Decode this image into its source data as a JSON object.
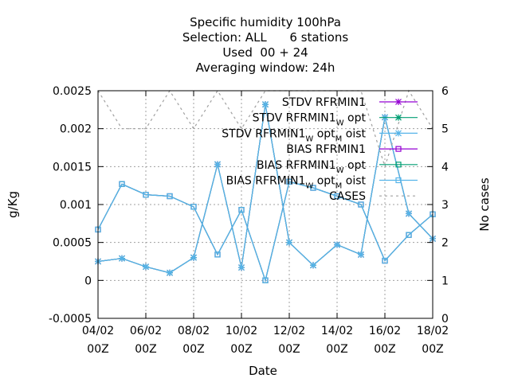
{
  "chart_data": {
    "type": "line",
    "title_lines": [
      "Specific humidity 100hPa",
      "Selection: ALL      6 stations",
      "Used  00 + 24",
      "Averaging window: 24h"
    ],
    "xlabel": "Date",
    "ylabel": "g/Kg",
    "y2label": "No cases",
    "x": [
      0,
      1,
      2,
      3,
      4,
      5,
      6,
      7,
      8,
      9,
      10,
      11,
      12,
      13,
      14
    ],
    "xticks": [
      {
        "pos": 0,
        "label": "04/02\n00Z"
      },
      {
        "pos": 2,
        "label": "06/02\n00Z"
      },
      {
        "pos": 4,
        "label": "08/02\n00Z"
      },
      {
        "pos": 6,
        "label": "10/02\n00Z"
      },
      {
        "pos": 8,
        "label": "12/02\n00Z"
      },
      {
        "pos": 10,
        "label": "14/02\n00Z"
      },
      {
        "pos": 12,
        "label": "16/02\n00Z"
      },
      {
        "pos": 14,
        "label": "18/02\n00Z"
      }
    ],
    "xlim": [
      0,
      14
    ],
    "ylim": [
      -0.0005,
      0.0025
    ],
    "yticks": [
      "-0.0005",
      "0",
      "0.0005",
      "0.001",
      "0.0015",
      "0.002",
      "0.0025"
    ],
    "y2lim": [
      0,
      6
    ],
    "y2ticks": [
      "0",
      "1",
      "2",
      "3",
      "4",
      "5",
      "6"
    ],
    "grid": true,
    "legend_position": "top-right",
    "legend_entries": [
      "STDV RFRMIN1",
      "STDV RFRMIN1_W opt",
      "STDV RFRMIN1_W opt_M oist",
      "BIAS RFRMIN1",
      "BIAS RFRMIN1_W opt",
      "BIAS RFRMIN1_W opt_M oist",
      "CASES"
    ],
    "series": [
      {
        "name": "STDV RFRMIN1",
        "color": "#9400d3",
        "marker": "star",
        "axis": "y",
        "values": [
          0.00025,
          0.00029,
          0.00018,
          0.0001,
          0.0003,
          0.00153,
          0.00017,
          0.00232,
          0.0005,
          0.0002,
          0.00047,
          0.00034,
          0.00215,
          0.00088,
          0.00055
        ]
      },
      {
        "name": "STDV RFRMIN1_W opt",
        "color": "#009e73",
        "marker": "star",
        "axis": "y",
        "values": [
          0.00025,
          0.00029,
          0.00018,
          0.0001,
          0.0003,
          0.00153,
          0.00017,
          0.00232,
          0.0005,
          0.0002,
          0.00047,
          0.00034,
          0.00215,
          0.00088,
          0.00055
        ]
      },
      {
        "name": "STDV RFRMIN1_W opt_M oist",
        "color": "#56b4e9",
        "marker": "star",
        "axis": "y",
        "values": [
          0.00025,
          0.00029,
          0.00018,
          0.0001,
          0.0003,
          0.00153,
          0.00017,
          0.00232,
          0.0005,
          0.0002,
          0.00047,
          0.00034,
          0.00215,
          0.00088,
          0.00055
        ]
      },
      {
        "name": "BIAS RFRMIN1",
        "color": "#9400d3",
        "marker": "square",
        "axis": "y",
        "values": [
          0.00067,
          0.00127,
          0.00113,
          0.00111,
          0.00097,
          0.00034,
          0.00093,
          0.0,
          0.0013,
          0.00122,
          0.00111,
          0.001,
          0.00026,
          0.0006,
          0.00087
        ]
      },
      {
        "name": "BIAS RFRMIN1_W opt",
        "color": "#009e73",
        "marker": "square",
        "axis": "y",
        "values": [
          0.00067,
          0.00127,
          0.00113,
          0.00111,
          0.00097,
          0.00034,
          0.00093,
          0.0,
          0.0013,
          0.00122,
          0.00111,
          0.001,
          0.00026,
          0.0006,
          0.00087
        ]
      },
      {
        "name": "BIAS RFRMIN1_W opt_M oist",
        "color": "#56b4e9",
        "marker": "square",
        "axis": "y",
        "values": [
          0.00067,
          0.00127,
          0.00113,
          0.00111,
          0.00097,
          0.00034,
          0.00093,
          0.0,
          0.0013,
          0.00122,
          0.00111,
          0.001,
          0.00026,
          0.0006,
          0.00087
        ]
      },
      {
        "name": "CASES",
        "color": "#a0a0a0",
        "marker": "none",
        "dashed": true,
        "axis": "y2",
        "values": [
          6,
          5,
          5,
          6,
          5,
          6,
          5,
          6,
          6,
          6,
          6,
          6,
          4,
          6,
          5
        ]
      }
    ]
  }
}
